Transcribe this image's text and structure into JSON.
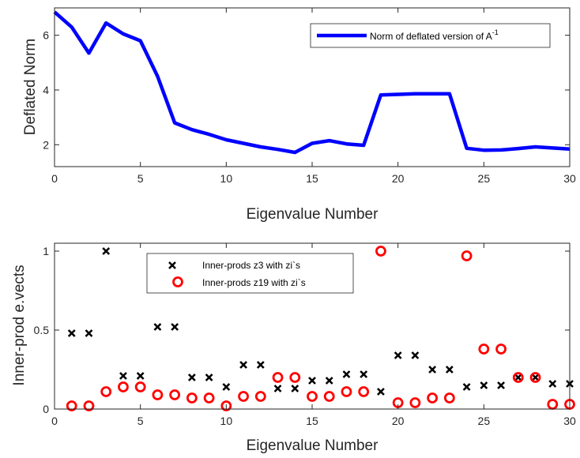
{
  "chart_data": [
    {
      "type": "line",
      "xlabel": "Eigenvalue Number",
      "ylabel": "Deflated Norm",
      "xlim": [
        0,
        30
      ],
      "ylim": [
        1.2,
        7
      ],
      "xticks": [
        0,
        5,
        10,
        15,
        20,
        25,
        30
      ],
      "yticks": [
        2,
        4,
        6
      ],
      "grid": false,
      "legend_position": "top-right",
      "series": [
        {
          "name": "Norm of deflated version of A",
          "name_superscript": "-1",
          "color": "#0000ff",
          "x": [
            0,
            1,
            2,
            3,
            4,
            5,
            6,
            7,
            8,
            9,
            10,
            11,
            12,
            13,
            14,
            15,
            16,
            17,
            18,
            19,
            20,
            21,
            22,
            23,
            24,
            25,
            26,
            27,
            28,
            29,
            30
          ],
          "y": [
            6.85,
            6.3,
            5.35,
            6.45,
            6.05,
            5.8,
            4.5,
            2.8,
            2.55,
            2.38,
            2.18,
            2.05,
            1.92,
            1.83,
            1.72,
            2.05,
            2.15,
            2.03,
            1.98,
            3.82,
            3.84,
            3.86,
            3.86,
            3.86,
            1.87,
            1.8,
            1.81,
            1.86,
            1.92,
            1.88,
            1.84
          ]
        }
      ]
    },
    {
      "type": "scatter",
      "xlabel": "Eigenvalue Number",
      "ylabel": "Inner-prod e.vects",
      "xlim": [
        0,
        30
      ],
      "ylim": [
        0,
        1.05
      ],
      "xticks": [
        0,
        5,
        10,
        15,
        20,
        25,
        30
      ],
      "yticks": [
        0,
        0.5,
        1
      ],
      "ytick_labels": [
        "0",
        "0.5",
        "1"
      ],
      "grid": false,
      "legend_position": "top-left",
      "series": [
        {
          "name": "Inner-prods z3 with zi`s",
          "marker": "x",
          "color": "#000000",
          "x": [
            1,
            2,
            3,
            4,
            5,
            6,
            7,
            8,
            9,
            10,
            11,
            12,
            13,
            14,
            15,
            16,
            17,
            18,
            19,
            20,
            21,
            22,
            23,
            24,
            25,
            26,
            27,
            28,
            29,
            30
          ],
          "y": [
            0.48,
            0.48,
            1.0,
            0.21,
            0.21,
            0.52,
            0.52,
            0.2,
            0.2,
            0.14,
            0.28,
            0.28,
            0.13,
            0.13,
            0.18,
            0.18,
            0.22,
            0.22,
            0.11,
            0.34,
            0.34,
            0.25,
            0.25,
            0.14,
            0.15,
            0.15,
            0.2,
            0.2,
            0.16,
            0.16
          ]
        },
        {
          "name": "Inner-prods z19 with zi`s",
          "marker": "o",
          "color": "#ff0000",
          "x": [
            1,
            2,
            3,
            4,
            5,
            6,
            7,
            8,
            9,
            10,
            11,
            12,
            13,
            14,
            15,
            16,
            17,
            18,
            19,
            20,
            21,
            22,
            23,
            24,
            25,
            26,
            27,
            28,
            29,
            30
          ],
          "y": [
            0.02,
            0.02,
            0.11,
            0.14,
            0.14,
            0.09,
            0.09,
            0.07,
            0.07,
            0.02,
            0.08,
            0.08,
            0.2,
            0.2,
            0.08,
            0.08,
            0.11,
            0.11,
            1.0,
            0.04,
            0.04,
            0.07,
            0.07,
            0.97,
            0.38,
            0.38,
            0.2,
            0.2,
            0.03,
            0.03
          ]
        }
      ]
    }
  ]
}
